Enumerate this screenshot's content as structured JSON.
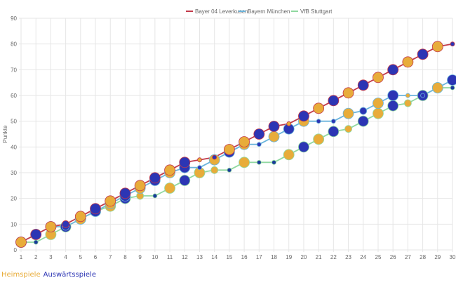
{
  "chart_data": {
    "type": "line",
    "ylabel": "Punkte",
    "xlabel": "",
    "ylim": [
      0,
      90
    ],
    "y_ticks": [
      0,
      10,
      20,
      30,
      40,
      50,
      60,
      70,
      80,
      90
    ],
    "categories": [
      "1",
      "2",
      "3",
      "4",
      "5",
      "6",
      "7",
      "8",
      "9",
      "10",
      "11",
      "12",
      "13",
      "14",
      "15",
      "16",
      "17",
      "18",
      "19",
      "20",
      "21",
      "22",
      "23",
      "24",
      "25",
      "26",
      "27",
      "28",
      "29",
      "30"
    ],
    "grid": true,
    "legend_position": "top",
    "series": [
      {
        "name": "Bayer 04 Leverkusen",
        "color": "#c23a4a",
        "values": [
          3,
          6,
          9,
          10,
          13,
          16,
          19,
          22,
          25,
          28,
          31,
          34,
          35,
          36,
          39,
          42,
          45,
          48,
          49,
          52,
          55,
          58,
          61,
          64,
          67,
          70,
          73,
          76,
          79,
          80
        ],
        "marker_colors": [
          "#e8ac3a",
          "#2c35b4",
          "#e8ac3a",
          "#2c35b4",
          "#e8ac3a",
          "#2c35b4",
          "#e8ac3a",
          "#2c35b4",
          "#e8ac3a",
          "#2c35b4",
          "#e8ac3a",
          "#2c35b4",
          "#e8ac3a",
          "#2c35b4",
          "#e8ac3a",
          "#e8ac3a",
          "#2c35b4",
          "#2c35b4",
          "#e8ac3a",
          "#2c35b4",
          "#e8ac3a",
          "#2c35b4",
          "#e8ac3a",
          "#2c35b4",
          "#e8ac3a",
          "#2c35b4",
          "#e8ac3a",
          "#2c35b4",
          "#e8ac3a",
          "#2c35b4"
        ],
        "marker_sizes": [
          "L",
          "L",
          "L",
          "M",
          "L",
          "L",
          "L",
          "L",
          "L",
          "L",
          "L",
          "L",
          "S",
          "S",
          "L",
          "L",
          "L",
          "L",
          "S",
          "L",
          "L",
          "L",
          "L",
          "L",
          "L",
          "L",
          "L",
          "L",
          "L",
          "S"
        ]
      },
      {
        "name": "Bayern München",
        "color": "#6ab4dc",
        "values": [
          3,
          6,
          9,
          9,
          12,
          15,
          18,
          21,
          24,
          27,
          30,
          32,
          32,
          35,
          38,
          41,
          41,
          44,
          47,
          50,
          50,
          50,
          53,
          54,
          57,
          60,
          60,
          60,
          63,
          66
        ],
        "marker_colors": [
          "#e8ac3a",
          "#2c35b4",
          "#e8ac3a",
          "#2c35b4",
          "#e8ac3a",
          "#2c35b4",
          "#e8ac3a",
          "#2c35b4",
          "#e8ac3a",
          "#2c35b4",
          "#e8ac3a",
          "#2c35b4",
          "#2c35b4",
          "#e8ac3a",
          "#2c35b4",
          "#e8ac3a",
          "#2c35b4",
          "#e8ac3a",
          "#2c35b4",
          "#e8ac3a",
          "#2c35b4",
          "#2c35b4",
          "#e8ac3a",
          "#2c35b4",
          "#e8ac3a",
          "#2c35b4",
          "#e8ac3a",
          "#2c35b4",
          "#e8ac3a",
          "#2c35b4"
        ],
        "marker_sizes": [
          "L",
          "L",
          "L",
          "M",
          "L",
          "L",
          "L",
          "L",
          "L",
          "L",
          "L",
          "L",
          "S",
          "L",
          "L",
          "L",
          "S",
          "L",
          "L",
          "L",
          "S",
          "S",
          "L",
          "M",
          "L",
          "L",
          "S",
          "S",
          "L",
          "L"
        ]
      },
      {
        "name": "VfB Stuttgart",
        "color": "#90d8a0",
        "values": [
          3,
          3,
          6,
          9,
          12,
          15,
          17,
          20,
          21,
          21,
          24,
          27,
          30,
          31,
          31,
          34,
          34,
          34,
          37,
          40,
          43,
          46,
          47,
          50,
          53,
          56,
          57,
          60,
          63,
          63
        ],
        "marker_colors": [
          "#e8ac3a",
          "#1a3a9a",
          "#e8ac3a",
          "#2c35b4",
          "#e8ac3a",
          "#2c35b4",
          "#e8ac3a",
          "#2c35b4",
          "#e8ac3a",
          "#1a3a9a",
          "#e8ac3a",
          "#2c35b4",
          "#e8ac3a",
          "#e8ac3a",
          "#1a3a9a",
          "#e8ac3a",
          "#1a3a9a",
          "#1a3a9a",
          "#e8ac3a",
          "#2c35b4",
          "#e8ac3a",
          "#2c35b4",
          "#e8ac3a",
          "#2c35b4",
          "#e8ac3a",
          "#2c35b4",
          "#e8ac3a",
          "#2c35b4",
          "#e8ac3a",
          "#1a3a9a"
        ],
        "marker_sizes": [
          "L",
          "S",
          "L",
          "L",
          "L",
          "L",
          "L",
          "L",
          "M",
          "S",
          "L",
          "L",
          "L",
          "M",
          "S",
          "L",
          "S",
          "S",
          "L",
          "L",
          "L",
          "L",
          "M",
          "L",
          "L",
          "L",
          "M",
          "L",
          "L",
          "S"
        ]
      }
    ]
  },
  "footer": {
    "home_label": "Heimspiele",
    "home_color": "#e8ac3a",
    "away_label": "Auswärtsspiele",
    "away_color": "#2c35b4"
  }
}
